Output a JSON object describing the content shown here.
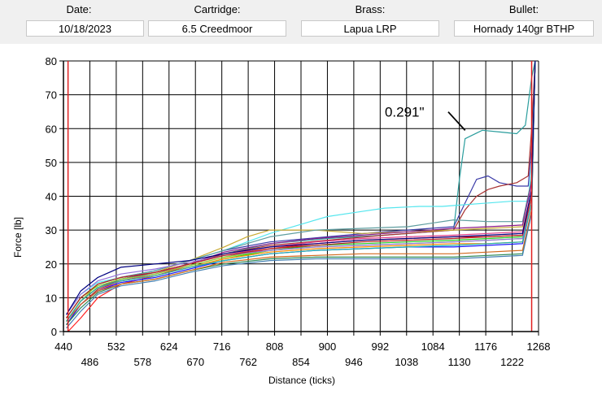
{
  "header": {
    "date_label": "Date:",
    "date_value": "10/18/2023",
    "cartridge_label": "Cartridge:",
    "cartridge_value": "6.5 Creedmoor",
    "brass_label": "Brass:",
    "brass_value": "Lapua LRP",
    "bullet_label": "Bullet:",
    "bullet_value": "Hornady 140gr BTHP"
  },
  "chart_data": {
    "type": "line",
    "title": "",
    "xlabel": "Distance (ticks)",
    "ylabel": "Force [lb]",
    "xlim": [
      440,
      1268
    ],
    "ylim": [
      0,
      80
    ],
    "grid": true,
    "x_ticks_top_row": [
      "440",
      "532",
      "624",
      "716",
      "808",
      "900",
      "992",
      "1084",
      "1176",
      "1268"
    ],
    "x_ticks_bottom_row": [
      "486",
      "578",
      "670",
      "762",
      "854",
      "946",
      "1038",
      "1130",
      "1222"
    ],
    "y_ticks": [
      "0",
      "10",
      "20",
      "30",
      "40",
      "50",
      "60",
      "70",
      "80"
    ],
    "reference_lines_x": [
      448,
      1256
    ],
    "annotation": {
      "text": "0.291\"",
      "points_to": [
        1140,
        59.5
      ]
    },
    "series": [
      {
        "color": "#2a9d9d",
        "x": [
          445,
          470,
          500,
          540,
          600,
          660,
          720,
          800,
          900,
          1000,
          1080,
          1120,
          1130,
          1140,
          1170,
          1200,
          1230,
          1245,
          1256,
          1262
        ],
        "y": [
          3,
          9,
          13,
          15.5,
          17.5,
          20,
          23,
          26,
          27.5,
          28.5,
          29.5,
          30,
          45,
          57,
          59.5,
          59,
          58.5,
          61,
          75,
          80
        ]
      },
      {
        "color": "#3b3ba8",
        "x": [
          445,
          470,
          500,
          540,
          600,
          660,
          720,
          800,
          900,
          1000,
          1080,
          1120,
          1140,
          1160,
          1180,
          1200,
          1230,
          1250,
          1256,
          1262
        ],
        "y": [
          4,
          10,
          14,
          16,
          18,
          21,
          24,
          26.5,
          28,
          29.5,
          30.5,
          31,
          38,
          45,
          46,
          44,
          43,
          43,
          55,
          80
        ]
      },
      {
        "color": "#a83232",
        "x": [
          445,
          470,
          500,
          540,
          600,
          660,
          720,
          800,
          900,
          1000,
          1080,
          1120,
          1140,
          1160,
          1180,
          1200,
          1230,
          1250,
          1256,
          1262
        ],
        "y": [
          2,
          8,
          12.5,
          15,
          17,
          20,
          23,
          25.5,
          27,
          28.5,
          29.5,
          30,
          36,
          40,
          42,
          43,
          44,
          46,
          60,
          80
        ]
      },
      {
        "color": "#55e6ee",
        "x": [
          445,
          470,
          500,
          540,
          600,
          660,
          720,
          760,
          800,
          860,
          900,
          960,
          1000,
          1060,
          1100,
          1140,
          1180,
          1220,
          1250,
          1256,
          1262
        ],
        "y": [
          5,
          11,
          14.5,
          16,
          18,
          21,
          24,
          26.5,
          29,
          32,
          34,
          35.5,
          36.5,
          37,
          37,
          37.5,
          38,
          38.5,
          38.5,
          50,
          80
        ]
      },
      {
        "color": "#c8aa32",
        "x": [
          445,
          470,
          500,
          540,
          600,
          660,
          720,
          760,
          800,
          880,
          960,
          1040,
          1120,
          1180,
          1240,
          1256,
          1262
        ],
        "y": [
          3,
          9,
          14,
          16,
          17.5,
          21,
          25,
          28,
          30,
          30,
          29,
          29.5,
          30,
          30.5,
          31,
          45,
          80
        ]
      },
      {
        "color": "#5f9ea0",
        "x": [
          445,
          470,
          500,
          540,
          600,
          660,
          720,
          800,
          880,
          960,
          1040,
          1080,
          1120,
          1180,
          1240,
          1256,
          1262
        ],
        "y": [
          4,
          10,
          14,
          16,
          18,
          21,
          24,
          28,
          30,
          30.5,
          31,
          32,
          33,
          32.5,
          32.5,
          45,
          80
        ]
      },
      {
        "color": "#8b1a8b",
        "x": [
          445,
          470,
          500,
          540,
          600,
          660,
          720,
          800,
          880,
          960,
          1040,
          1120,
          1180,
          1240,
          1256,
          1262
        ],
        "y": [
          3,
          9,
          13,
          15.5,
          17.5,
          20,
          23.5,
          26,
          27.5,
          28.5,
          29.5,
          30.5,
          31,
          31.5,
          44,
          80
        ]
      },
      {
        "color": "#e0408a",
        "x": [
          445,
          470,
          500,
          540,
          600,
          660,
          720,
          800,
          880,
          960,
          1040,
          1120,
          1180,
          1240,
          1256,
          1262
        ],
        "y": [
          2,
          8,
          12,
          15,
          17,
          20,
          22.5,
          25,
          26.5,
          27.5,
          28,
          28.5,
          29,
          29.5,
          42,
          80
        ]
      },
      {
        "color": "#ff2020",
        "x": [
          448,
          470,
          500,
          540,
          600,
          660,
          720,
          800,
          880,
          960,
          1040,
          1120,
          1180,
          1240,
          1256,
          1262
        ],
        "y": [
          0,
          4,
          10,
          14,
          16.5,
          19.5,
          22,
          24.5,
          26,
          27,
          27.5,
          28,
          28,
          28.5,
          40,
          80
        ]
      },
      {
        "color": "#22cc22",
        "x": [
          445,
          470,
          500,
          540,
          600,
          660,
          720,
          800,
          880,
          960,
          1040,
          1120,
          1180,
          1240,
          1256,
          1262
        ],
        "y": [
          3,
          9,
          13,
          15,
          16.5,
          19,
          21.5,
          24,
          25.5,
          26,
          26.5,
          27,
          27.5,
          28,
          40,
          80
        ]
      },
      {
        "color": "#7fdc2a",
        "x": [
          445,
          470,
          500,
          540,
          600,
          660,
          720,
          800,
          880,
          960,
          1040,
          1120,
          1180,
          1240,
          1256,
          1262
        ],
        "y": [
          4,
          10,
          13.5,
          15.5,
          17,
          19.5,
          22,
          24,
          25,
          25.5,
          26,
          26.5,
          27,
          27.5,
          40,
          80
        ]
      },
      {
        "color": "#1a1aff",
        "x": [
          445,
          470,
          500,
          540,
          600,
          660,
          720,
          800,
          880,
          960,
          1040,
          1120,
          1180,
          1240,
          1256,
          1262
        ],
        "y": [
          2,
          8,
          12,
          14.5,
          16,
          18.5,
          21,
          23,
          24,
          24.5,
          25,
          25,
          25.5,
          26,
          38,
          80
        ]
      },
      {
        "color": "#ff8c00",
        "x": [
          445,
          470,
          500,
          540,
          600,
          660,
          720,
          800,
          880,
          960,
          1040,
          1120,
          1180,
          1240,
          1256,
          1262
        ],
        "y": [
          3,
          9,
          13,
          15,
          16.5,
          19,
          21.5,
          23.5,
          24.5,
          25,
          25.5,
          26,
          26,
          26.5,
          38,
          80
        ]
      },
      {
        "color": "#9370db",
        "x": [
          445,
          470,
          500,
          540,
          600,
          660,
          720,
          800,
          880,
          960,
          1040,
          1120,
          1180,
          1240,
          1256,
          1262
        ],
        "y": [
          5,
          11,
          15,
          17,
          18.5,
          20.5,
          22.5,
          24,
          25,
          25.5,
          26,
          26.5,
          27,
          27.5,
          40,
          80
        ]
      },
      {
        "color": "#2e8b57",
        "x": [
          445,
          470,
          500,
          540,
          600,
          660,
          720,
          800,
          880,
          960,
          1040,
          1120,
          1180,
          1240,
          1256,
          1262
        ],
        "y": [
          2,
          7,
          11.5,
          14,
          15.5,
          18,
          20,
          21.5,
          22,
          22,
          22,
          22,
          22.5,
          23,
          36,
          80
        ]
      },
      {
        "color": "#d2691e",
        "x": [
          445,
          470,
          500,
          540,
          600,
          660,
          720,
          800,
          880,
          960,
          1040,
          1120,
          1180,
          1240,
          1256,
          1262
        ],
        "y": [
          3,
          8,
          12,
          14,
          15.5,
          18,
          20.5,
          22,
          22.5,
          23,
          23,
          23,
          23.5,
          24,
          36,
          80
        ]
      },
      {
        "color": "#4682b4",
        "x": [
          445,
          470,
          500,
          540,
          600,
          660,
          720,
          800,
          880,
          960,
          1040,
          1120,
          1180,
          1240,
          1256,
          1262
        ],
        "y": [
          1,
          6,
          11,
          13.5,
          15,
          17.5,
          19.5,
          21,
          21.5,
          21.5,
          21.5,
          21.5,
          22,
          22.5,
          35,
          80
        ]
      },
      {
        "color": "#b22222",
        "x": [
          445,
          470,
          500,
          540,
          600,
          660,
          720,
          800,
          880,
          960,
          1040,
          1120,
          1180,
          1240,
          1256,
          1262
        ],
        "y": [
          4,
          10,
          14,
          16,
          17.5,
          20,
          22.5,
          24.5,
          25.5,
          26.5,
          27,
          27.5,
          28,
          28.5,
          40,
          80
        ]
      },
      {
        "color": "#20b2aa",
        "x": [
          445,
          470,
          500,
          540,
          600,
          660,
          720,
          800,
          880,
          960,
          1040,
          1120,
          1180,
          1240,
          1256,
          1262
        ],
        "y": [
          3,
          9,
          13,
          15,
          16.5,
          19,
          21,
          23,
          24,
          24.5,
          25,
          25.5,
          26,
          26.5,
          38,
          80
        ]
      },
      {
        "color": "#000080",
        "x": [
          445,
          470,
          500,
          540,
          600,
          660,
          720,
          800,
          880,
          960,
          1040,
          1120,
          1180,
          1240,
          1256,
          1262
        ],
        "y": [
          5,
          12,
          16,
          19,
          20,
          21,
          23,
          25,
          26,
          27,
          27.5,
          28,
          28.5,
          29,
          42,
          80
        ]
      }
    ]
  }
}
